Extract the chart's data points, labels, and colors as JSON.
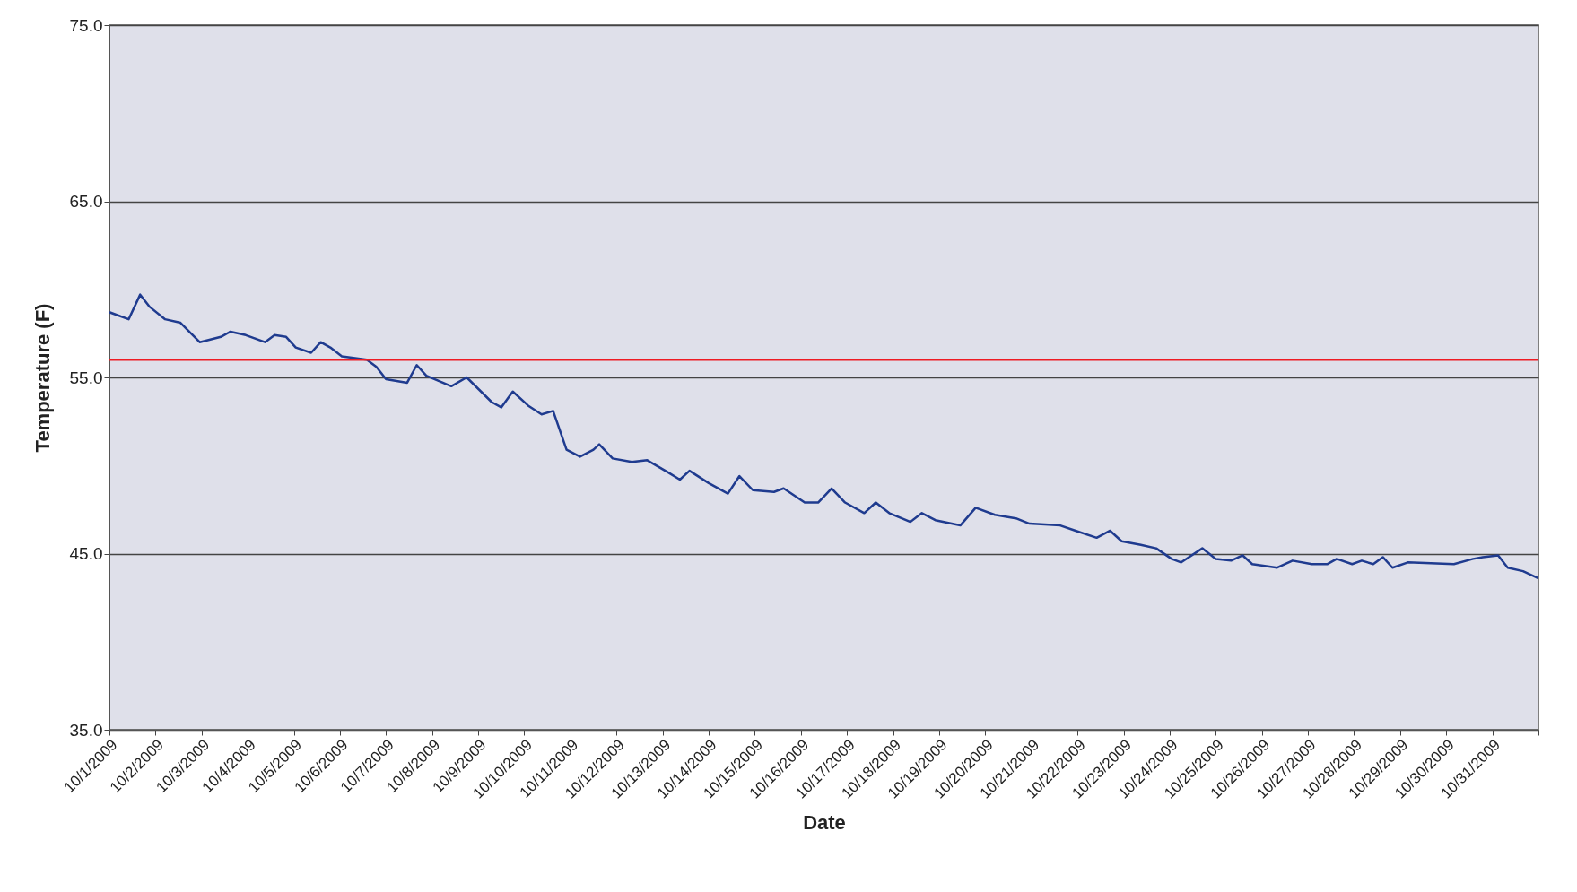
{
  "chart_data": {
    "type": "line",
    "xlabel": "Date",
    "ylabel": "Temperature (F)",
    "x": [
      "2009-10-01T00:00",
      "2009-10-01T10:00",
      "2009-10-01T16:00",
      "2009-10-01T21:00",
      "2009-10-02T05:00",
      "2009-10-02T13:00",
      "2009-10-02T23:00",
      "2009-10-03T10:00",
      "2009-10-03T15:00",
      "2009-10-03T23:00",
      "2009-10-04T09:00",
      "2009-10-04T14:00",
      "2009-10-04T20:00",
      "2009-10-05T01:00",
      "2009-10-05T09:00",
      "2009-10-05T14:00",
      "2009-10-05T19:00",
      "2009-10-06T01:00",
      "2009-10-06T14:00",
      "2009-10-06T19:00",
      "2009-10-07T00:00",
      "2009-10-07T11:00",
      "2009-10-07T16:00",
      "2009-10-07T21:00",
      "2009-10-08T10:00",
      "2009-10-08T18:00",
      "2009-10-09T07:00",
      "2009-10-09T12:00",
      "2009-10-09T18:00",
      "2009-10-10T02:00",
      "2009-10-10T09:00",
      "2009-10-10T15:00",
      "2009-10-10T22:00",
      "2009-10-11T05:00",
      "2009-10-11T12:00",
      "2009-10-11T15:00",
      "2009-10-11T22:00",
      "2009-10-12T08:00",
      "2009-10-12T16:00",
      "2009-10-13T03:00",
      "2009-10-13T09:00",
      "2009-10-13T14:00",
      "2009-10-14T00:00",
      "2009-10-14T10:00",
      "2009-10-14T16:00",
      "2009-10-14T23:00",
      "2009-10-15T10:00",
      "2009-10-15T15:00",
      "2009-10-16T02:00",
      "2009-10-16T09:00",
      "2009-10-16T16:00",
      "2009-10-16T23:00",
      "2009-10-17T09:00",
      "2009-10-17T15:00",
      "2009-10-17T22:00",
      "2009-10-18T09:00",
      "2009-10-18T15:00",
      "2009-10-18T22:00",
      "2009-10-19T11:00",
      "2009-10-19T19:00",
      "2009-10-20T05:00",
      "2009-10-20T16:00",
      "2009-10-20T23:00",
      "2009-10-21T15:00",
      "2009-10-21T23:00",
      "2009-10-22T10:00",
      "2009-10-22T17:00",
      "2009-10-22T23:00",
      "2009-10-23T09:00",
      "2009-10-23T17:00",
      "2009-10-24T01:00",
      "2009-10-24T06:00",
      "2009-10-24T17:00",
      "2009-10-25T00:00",
      "2009-10-25T08:00",
      "2009-10-25T14:00",
      "2009-10-25T19:00",
      "2009-10-26T08:00",
      "2009-10-26T16:00",
      "2009-10-27T02:00",
      "2009-10-27T10:00",
      "2009-10-27T15:00",
      "2009-10-27T23:00",
      "2009-10-28T04:00",
      "2009-10-28T10:00",
      "2009-10-28T15:00",
      "2009-10-28T20:00",
      "2009-10-29T04:00",
      "2009-10-30T04:00",
      "2009-10-30T14:00",
      "2009-10-30T19:00",
      "2009-10-31T03:00",
      "2009-10-31T08:00",
      "2009-10-31T16:00",
      "2009-11-01T00:00"
    ],
    "series": [
      {
        "color": "#1f3b8f",
        "values": [
          58.7,
          58.3,
          59.7,
          59.0,
          58.3,
          58.1,
          57.0,
          57.3,
          57.6,
          57.4,
          57.0,
          57.4,
          57.3,
          56.7,
          56.4,
          57.0,
          56.7,
          56.2,
          56.0,
          55.6,
          54.9,
          54.7,
          55.7,
          55.1,
          54.5,
          55.0,
          53.6,
          53.3,
          54.2,
          53.4,
          52.9,
          53.1,
          50.9,
          50.5,
          50.9,
          51.2,
          50.4,
          50.2,
          50.3,
          49.6,
          49.2,
          49.7,
          49.0,
          48.4,
          49.4,
          48.6,
          48.5,
          48.7,
          47.9,
          47.9,
          48.7,
          47.9,
          47.3,
          47.9,
          47.3,
          46.8,
          47.3,
          46.9,
          46.6,
          47.6,
          47.2,
          47.0,
          46.7,
          46.6,
          46.3,
          45.9,
          46.3,
          45.7,
          45.5,
          45.3,
          44.7,
          44.5,
          45.3,
          44.7,
          44.6,
          44.9,
          44.4,
          44.2,
          44.6,
          44.4,
          44.4,
          44.7,
          44.4,
          44.6,
          44.4,
          44.8,
          44.2,
          44.5,
          44.4,
          44.7,
          44.8,
          44.9,
          44.2,
          44.0,
          43.6
        ]
      }
    ],
    "xlim": [
      "2009-10-01",
      "2009-11-01"
    ],
    "xticks": [
      {
        "value": "2009-10-01",
        "label": "10/1/2009"
      },
      {
        "value": "2009-10-02",
        "label": "10/2/2009"
      },
      {
        "value": "2009-10-03",
        "label": "10/3/2009"
      },
      {
        "value": "2009-10-04",
        "label": "10/4/2009"
      },
      {
        "value": "2009-10-05",
        "label": "10/5/2009"
      },
      {
        "value": "2009-10-06",
        "label": "10/6/2009"
      },
      {
        "value": "2009-10-07",
        "label": "10/7/2009"
      },
      {
        "value": "2009-10-08",
        "label": "10/8/2009"
      },
      {
        "value": "2009-10-09",
        "label": "10/9/2009"
      },
      {
        "value": "2009-10-10",
        "label": "10/10/2009"
      },
      {
        "value": "2009-10-11",
        "label": "10/11/2009"
      },
      {
        "value": "2009-10-12",
        "label": "10/12/2009"
      },
      {
        "value": "2009-10-13",
        "label": "10/13/2009"
      },
      {
        "value": "2009-10-14",
        "label": "10/14/2009"
      },
      {
        "value": "2009-10-15",
        "label": "10/15/2009"
      },
      {
        "value": "2009-10-16",
        "label": "10/16/2009"
      },
      {
        "value": "2009-10-17",
        "label": "10/17/2009"
      },
      {
        "value": "2009-10-18",
        "label": "10/18/2009"
      },
      {
        "value": "2009-10-19",
        "label": "10/19/2009"
      },
      {
        "value": "2009-10-20",
        "label": "10/20/2009"
      },
      {
        "value": "2009-10-21",
        "label": "10/21/2009"
      },
      {
        "value": "2009-10-22",
        "label": "10/22/2009"
      },
      {
        "value": "2009-10-23",
        "label": "10/23/2009"
      },
      {
        "value": "2009-10-24",
        "label": "10/24/2009"
      },
      {
        "value": "2009-10-25",
        "label": "10/25/2009"
      },
      {
        "value": "2009-10-26",
        "label": "10/26/2009"
      },
      {
        "value": "2009-10-27",
        "label": "10/27/2009"
      },
      {
        "value": "2009-10-28",
        "label": "10/28/2009"
      },
      {
        "value": "2009-10-29",
        "label": "10/29/2009"
      },
      {
        "value": "2009-10-30",
        "label": "10/30/2009"
      },
      {
        "value": "2009-10-31",
        "label": "10/31/2009"
      },
      {
        "value": "2009-11-01",
        "label": null
      }
    ],
    "ylim": [
      35,
      75
    ],
    "yticks": [
      {
        "value": 35,
        "label": "35.0"
      },
      {
        "value": 45,
        "label": "45.0"
      },
      {
        "value": 55,
        "label": "55.0"
      },
      {
        "value": 65,
        "label": "65.0"
      },
      {
        "value": 75,
        "label": "75.0"
      }
    ],
    "grid": "y",
    "line_style": "solid",
    "ref_lines": [
      {
        "axis": "y",
        "value": 56,
        "color": "#ee1c24"
      }
    ]
  }
}
